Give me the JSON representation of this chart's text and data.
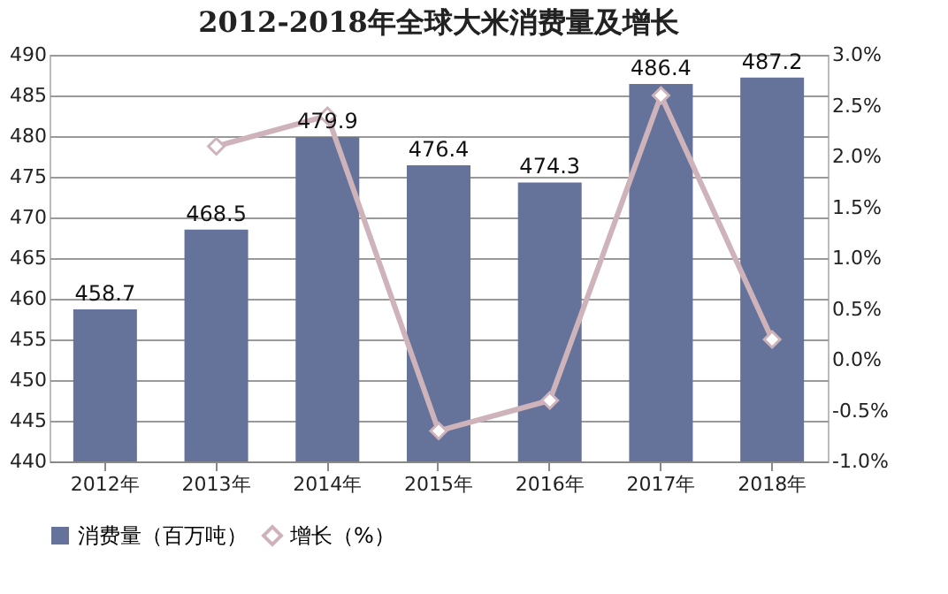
{
  "chart_data": {
    "type": "bar",
    "title": "2012-2018年全球大米消费量及增长",
    "categories": [
      "2012年",
      "2013年",
      "2014年",
      "2015年",
      "2016年",
      "2017年",
      "2018年"
    ],
    "series": [
      {
        "name": "消费量（百万吨）",
        "color": "#65739b",
        "values": [
          458.7,
          468.5,
          479.9,
          476.4,
          474.3,
          486.4,
          487.2
        ],
        "value_labels": [
          "458.7",
          "468.5",
          "479.9",
          "476.4",
          "474.3",
          "486.4",
          "487.2"
        ]
      },
      {
        "name": "增长（%）",
        "type": "line",
        "axis": "y2",
        "color": "#cfb3bb",
        "marker": "diamond",
        "values": [
          null,
          2.1,
          2.4,
          -0.7,
          -0.4,
          2.6,
          0.2
        ]
      }
    ],
    "ylim": [
      440,
      490
    ],
    "yticks": [
      440,
      445,
      450,
      455,
      460,
      465,
      470,
      475,
      480,
      485,
      490
    ],
    "y2lim": [
      -1.0,
      3.0
    ],
    "y2ticks": [
      {
        "value": -1.0,
        "label": "-1.0%"
      },
      {
        "value": -0.5,
        "label": "-0.5%"
      },
      {
        "value": 0,
        "label": "0.0%"
      },
      {
        "value": 0.5,
        "label": "0.5%"
      },
      {
        "value": 1.0,
        "label": "1.0%"
      },
      {
        "value": 1.5,
        "label": "1.5%"
      },
      {
        "value": 2.0,
        "label": "2.0%"
      },
      {
        "value": 2.5,
        "label": "2.5%"
      },
      {
        "value": 3.0,
        "label": "3.0%"
      }
    ],
    "grid": "y",
    "legend": "bottom"
  }
}
